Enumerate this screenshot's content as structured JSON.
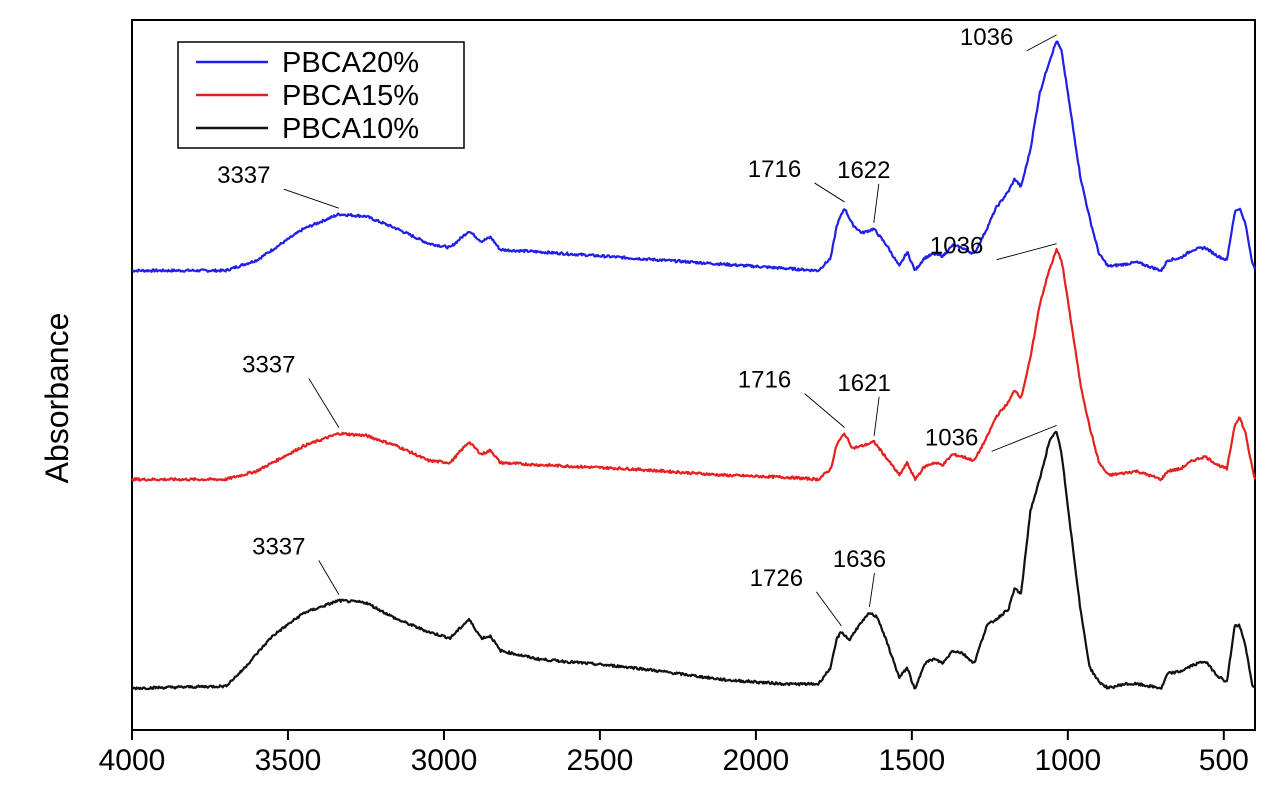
{
  "chart_data": {
    "type": "line",
    "title": "",
    "xlabel": "",
    "ylabel": "Absorbance",
    "xlim": [
      4000,
      400
    ],
    "x_reversed": true,
    "x_ticks": [
      4000,
      3500,
      3000,
      2500,
      2000,
      1500,
      1000,
      500
    ],
    "y_ticks_shown": false,
    "grid": false,
    "legend_position": "top-left",
    "series": [
      {
        "name": "PBCA20%",
        "color": "#1f1fe6",
        "baseline_absorbance": 2.0,
        "points": [
          [
            4000,
            2.0
          ],
          [
            3700,
            2.0
          ],
          [
            3600,
            2.05
          ],
          [
            3450,
            2.2
          ],
          [
            3337,
            2.27
          ],
          [
            3250,
            2.26
          ],
          [
            3150,
            2.2
          ],
          [
            3050,
            2.13
          ],
          [
            2980,
            2.11
          ],
          [
            2920,
            2.19
          ],
          [
            2880,
            2.14
          ],
          [
            2850,
            2.16
          ],
          [
            2820,
            2.1
          ],
          [
            2700,
            2.09
          ],
          [
            2400,
            2.06
          ],
          [
            2100,
            2.03
          ],
          [
            1900,
            2.01
          ],
          [
            1800,
            2.0
          ],
          [
            1760,
            2.06
          ],
          [
            1740,
            2.22
          ],
          [
            1716,
            2.3
          ],
          [
            1690,
            2.22
          ],
          [
            1660,
            2.18
          ],
          [
            1622,
            2.2
          ],
          [
            1580,
            2.12
          ],
          [
            1540,
            2.02
          ],
          [
            1515,
            2.09
          ],
          [
            1490,
            2.0
          ],
          [
            1460,
            2.06
          ],
          [
            1430,
            2.08
          ],
          [
            1400,
            2.07
          ],
          [
            1370,
            2.12
          ],
          [
            1340,
            2.11
          ],
          [
            1300,
            2.08
          ],
          [
            1260,
            2.2
          ],
          [
            1230,
            2.3
          ],
          [
            1190,
            2.38
          ],
          [
            1170,
            2.44
          ],
          [
            1150,
            2.4
          ],
          [
            1120,
            2.58
          ],
          [
            1090,
            2.85
          ],
          [
            1060,
            3.0
          ],
          [
            1036,
            3.1
          ],
          [
            1020,
            3.05
          ],
          [
            990,
            2.75
          ],
          [
            960,
            2.45
          ],
          [
            930,
            2.25
          ],
          [
            900,
            2.08
          ],
          [
            870,
            2.02
          ],
          [
            820,
            2.03
          ],
          [
            780,
            2.04
          ],
          [
            700,
            2.0
          ],
          [
            680,
            2.05
          ],
          [
            640,
            2.06
          ],
          [
            600,
            2.1
          ],
          [
            560,
            2.11
          ],
          [
            520,
            2.07
          ],
          [
            490,
            2.05
          ],
          [
            465,
            2.28
          ],
          [
            450,
            2.3
          ],
          [
            430,
            2.22
          ],
          [
            410,
            2.05
          ],
          [
            400,
            2.0
          ]
        ],
        "annotations": [
          {
            "label": "3337",
            "x": 3337
          },
          {
            "label": "1716",
            "x": 1716
          },
          {
            "label": "1622",
            "x": 1622
          },
          {
            "label": "1036",
            "x": 1036
          }
        ]
      },
      {
        "name": "PBCA15%",
        "color": "#e61f1f",
        "baseline_absorbance": 1.0,
        "points": [
          [
            4000,
            1.0
          ],
          [
            3700,
            1.0
          ],
          [
            3600,
            1.04
          ],
          [
            3450,
            1.16
          ],
          [
            3337,
            1.22
          ],
          [
            3250,
            1.21
          ],
          [
            3150,
            1.16
          ],
          [
            3050,
            1.09
          ],
          [
            2980,
            1.08
          ],
          [
            2920,
            1.18
          ],
          [
            2880,
            1.12
          ],
          [
            2850,
            1.14
          ],
          [
            2820,
            1.08
          ],
          [
            2700,
            1.07
          ],
          [
            2400,
            1.05
          ],
          [
            2100,
            1.02
          ],
          [
            1900,
            1.01
          ],
          [
            1800,
            1.0
          ],
          [
            1760,
            1.05
          ],
          [
            1740,
            1.17
          ],
          [
            1716,
            1.22
          ],
          [
            1690,
            1.15
          ],
          [
            1660,
            1.16
          ],
          [
            1621,
            1.18
          ],
          [
            1580,
            1.1
          ],
          [
            1540,
            1.02
          ],
          [
            1515,
            1.08
          ],
          [
            1490,
            1.0
          ],
          [
            1460,
            1.06
          ],
          [
            1430,
            1.08
          ],
          [
            1400,
            1.07
          ],
          [
            1370,
            1.12
          ],
          [
            1340,
            1.11
          ],
          [
            1300,
            1.09
          ],
          [
            1260,
            1.2
          ],
          [
            1230,
            1.3
          ],
          [
            1190,
            1.37
          ],
          [
            1170,
            1.43
          ],
          [
            1150,
            1.39
          ],
          [
            1120,
            1.58
          ],
          [
            1090,
            1.84
          ],
          [
            1060,
            2.0
          ],
          [
            1036,
            2.1
          ],
          [
            1020,
            2.05
          ],
          [
            990,
            1.76
          ],
          [
            960,
            1.46
          ],
          [
            930,
            1.25
          ],
          [
            900,
            1.08
          ],
          [
            870,
            1.02
          ],
          [
            820,
            1.03
          ],
          [
            780,
            1.04
          ],
          [
            700,
            1.0
          ],
          [
            680,
            1.04
          ],
          [
            640,
            1.05
          ],
          [
            600,
            1.09
          ],
          [
            560,
            1.11
          ],
          [
            520,
            1.07
          ],
          [
            490,
            1.05
          ],
          [
            465,
            1.26
          ],
          [
            450,
            1.3
          ],
          [
            430,
            1.22
          ],
          [
            410,
            1.06
          ],
          [
            400,
            1.0
          ]
        ],
        "annotations": [
          {
            "label": "3337",
            "x": 3337
          },
          {
            "label": "1716",
            "x": 1716
          },
          {
            "label": "1621",
            "x": 1621
          },
          {
            "label": "1036",
            "x": 1036
          }
        ]
      },
      {
        "name": "PBCA10%",
        "color": "#111111",
        "baseline_absorbance": 0.0,
        "points": [
          [
            4000,
            0.0
          ],
          [
            3700,
            0.01
          ],
          [
            3650,
            0.08
          ],
          [
            3550,
            0.25
          ],
          [
            3450,
            0.36
          ],
          [
            3337,
            0.42
          ],
          [
            3250,
            0.41
          ],
          [
            3150,
            0.33
          ],
          [
            3050,
            0.27
          ],
          [
            2980,
            0.24
          ],
          [
            2920,
            0.33
          ],
          [
            2880,
            0.24
          ],
          [
            2850,
            0.25
          ],
          [
            2820,
            0.18
          ],
          [
            2700,
            0.14
          ],
          [
            2400,
            0.1
          ],
          [
            2100,
            0.04
          ],
          [
            1900,
            0.02
          ],
          [
            1800,
            0.02
          ],
          [
            1760,
            0.1
          ],
          [
            1740,
            0.24
          ],
          [
            1726,
            0.27
          ],
          [
            1700,
            0.23
          ],
          [
            1680,
            0.28
          ],
          [
            1636,
            0.36
          ],
          [
            1610,
            0.34
          ],
          [
            1580,
            0.22
          ],
          [
            1540,
            0.05
          ],
          [
            1515,
            0.1
          ],
          [
            1490,
            -0.01
          ],
          [
            1460,
            0.12
          ],
          [
            1430,
            0.14
          ],
          [
            1400,
            0.12
          ],
          [
            1370,
            0.18
          ],
          [
            1340,
            0.17
          ],
          [
            1300,
            0.12
          ],
          [
            1260,
            0.3
          ],
          [
            1230,
            0.33
          ],
          [
            1190,
            0.38
          ],
          [
            1170,
            0.48
          ],
          [
            1150,
            0.45
          ],
          [
            1120,
            0.85
          ],
          [
            1090,
            1.0
          ],
          [
            1060,
            1.18
          ],
          [
            1036,
            1.23
          ],
          [
            1020,
            1.12
          ],
          [
            990,
            0.75
          ],
          [
            960,
            0.38
          ],
          [
            930,
            0.1
          ],
          [
            900,
            0.03
          ],
          [
            870,
            0.0
          ],
          [
            820,
            0.02
          ],
          [
            780,
            0.02
          ],
          [
            700,
            0.0
          ],
          [
            680,
            0.07
          ],
          [
            640,
            0.08
          ],
          [
            600,
            0.11
          ],
          [
            560,
            0.13
          ],
          [
            520,
            0.06
          ],
          [
            490,
            0.03
          ],
          [
            465,
            0.3
          ],
          [
            450,
            0.3
          ],
          [
            430,
            0.2
          ],
          [
            410,
            0.02
          ],
          [
            400,
            0.0
          ]
        ],
        "annotations": [
          {
            "label": "3337",
            "x": 3337
          },
          {
            "label": "1726",
            "x": 1726
          },
          {
            "label": "1636",
            "x": 1636
          },
          {
            "label": "1036",
            "x": 1036
          }
        ]
      }
    ]
  }
}
